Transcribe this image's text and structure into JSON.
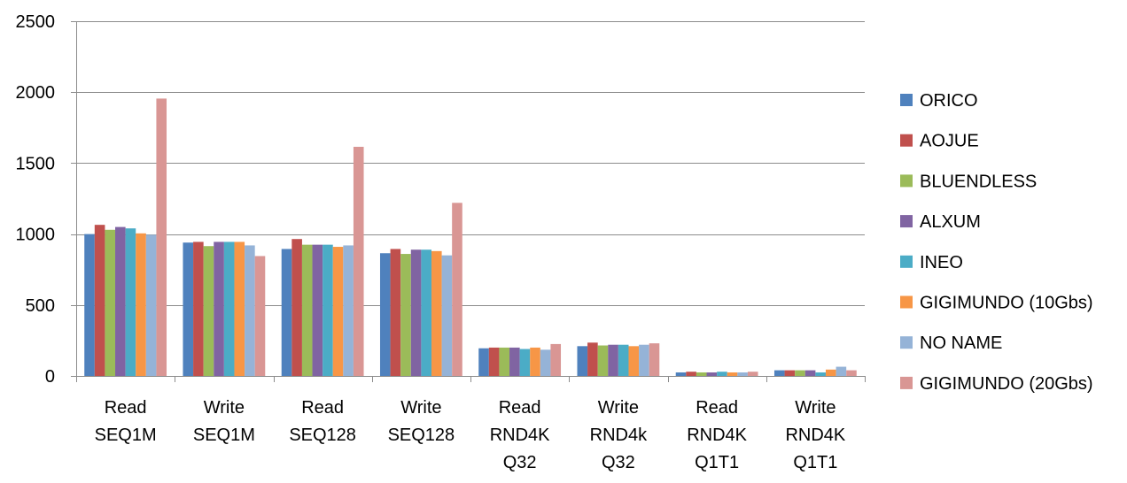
{
  "chart_data": {
    "type": "bar",
    "title": "",
    "xlabel": "",
    "ylabel": "",
    "ylim": [
      0,
      2500
    ],
    "yticks": [
      0,
      500,
      1000,
      1500,
      2000,
      2500
    ],
    "grid": true,
    "legend_position": "right",
    "categories": [
      [
        "Read",
        "SEQ1M"
      ],
      [
        "Write",
        "SEQ1M"
      ],
      [
        "Read",
        "SEQ128"
      ],
      [
        "Write",
        "SEQ128"
      ],
      [
        "Read",
        "RND4K",
        "Q32"
      ],
      [
        "Write",
        "RND4k",
        "Q32"
      ],
      [
        "Read",
        "RND4K",
        "Q1T1"
      ],
      [
        "Write",
        "RND4K",
        "Q1T1"
      ]
    ],
    "series": [
      {
        "name": "ORICO",
        "color": "#4F81BD",
        "values": [
          1000,
          940,
          895,
          865,
          195,
          210,
          25,
          40
        ]
      },
      {
        "name": "AOJUE",
        "color": "#C0504D",
        "values": [
          1065,
          945,
          965,
          895,
          200,
          235,
          30,
          40
        ]
      },
      {
        "name": "BLUENDLESS",
        "color": "#9BBB59",
        "values": [
          1030,
          915,
          925,
          860,
          200,
          215,
          25,
          40
        ]
      },
      {
        "name": "ALXUM",
        "color": "#8064A2",
        "values": [
          1050,
          945,
          925,
          890,
          200,
          220,
          25,
          40
        ]
      },
      {
        "name": "INEO",
        "color": "#4BACC6",
        "values": [
          1040,
          945,
          925,
          890,
          190,
          220,
          30,
          25
        ]
      },
      {
        "name": "GIGIMUNDO (10Gbs)",
        "color": "#F79646",
        "values": [
          1005,
          945,
          910,
          880,
          200,
          210,
          25,
          45
        ]
      },
      {
        "name": "NO NAME",
        "color": "#95B3D7",
        "values": [
          995,
          920,
          920,
          850,
          185,
          220,
          25,
          65
        ]
      },
      {
        "name": "GIGIMUNDO (20Gbs)",
        "color": "#D99694",
        "values": [
          1955,
          845,
          1615,
          1220,
          225,
          230,
          30,
          40
        ]
      }
    ]
  }
}
